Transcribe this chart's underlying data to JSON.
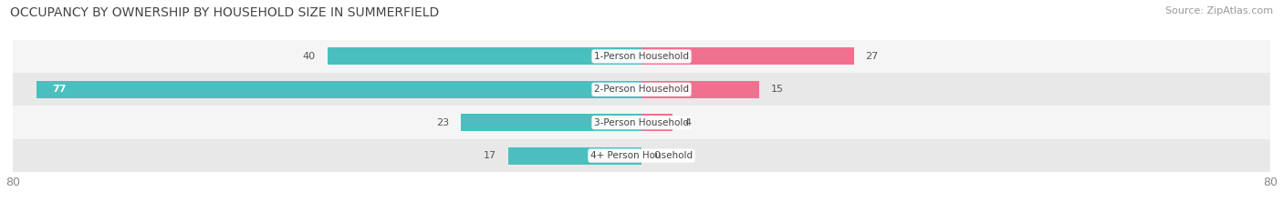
{
  "title": "OCCUPANCY BY OWNERSHIP BY HOUSEHOLD SIZE IN SUMMERFIELD",
  "source": "Source: ZipAtlas.com",
  "categories": [
    "1-Person Household",
    "2-Person Household",
    "3-Person Household",
    "4+ Person Household"
  ],
  "owner_values": [
    40,
    77,
    23,
    17
  ],
  "renter_values": [
    27,
    15,
    4,
    0
  ],
  "owner_color": "#4bbfbf",
  "renter_color": "#f07090",
  "row_bg_colors": [
    "#f5f5f5",
    "#e8e8e8",
    "#f5f5f5",
    "#e8e8e8"
  ],
  "axis_max": 80,
  "title_fontsize": 10,
  "source_fontsize": 8,
  "tick_fontsize": 9,
  "legend_fontsize": 9
}
